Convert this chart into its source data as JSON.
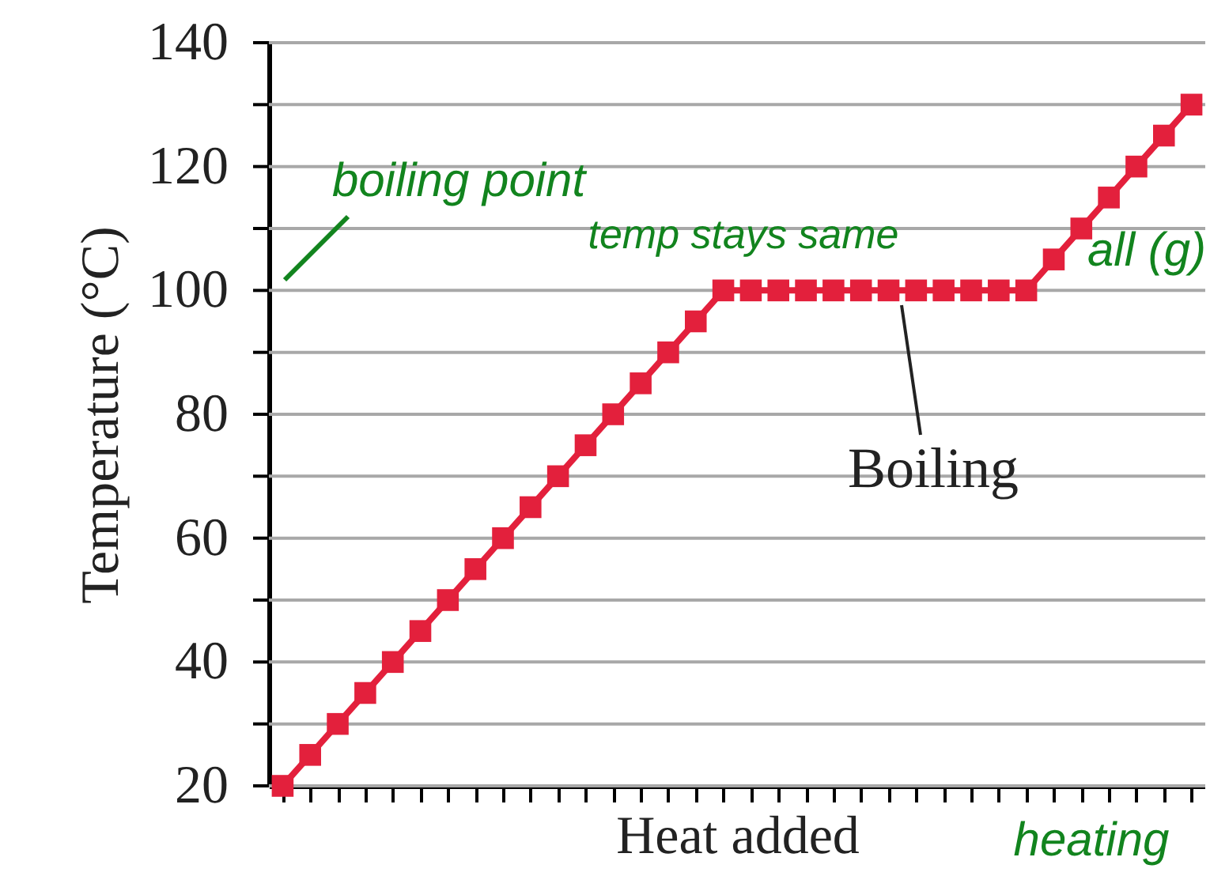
{
  "chart_data": {
    "type": "line",
    "xlabel": "Heat added",
    "ylabel": "Temperature (°C)",
    "categories": [
      null,
      null,
      null,
      null,
      null,
      null,
      null,
      null,
      null,
      null,
      null,
      null,
      null,
      null,
      null,
      null,
      null,
      null,
      null,
      null,
      null,
      null,
      null,
      null,
      null,
      null,
      null,
      null,
      null,
      null,
      null,
      null,
      null,
      null
    ],
    "series": [
      {
        "color": "#e3203c",
        "values": [
          20,
          25,
          30,
          35,
          40,
          45,
          50,
          55,
          60,
          65,
          70,
          75,
          80,
          85,
          90,
          95,
          100,
          100,
          100,
          100,
          100,
          100,
          100,
          100,
          100,
          100,
          100,
          100,
          105,
          110,
          115,
          120,
          125,
          130
        ]
      }
    ],
    "ylim": [
      20,
      140
    ],
    "yticks": [
      20,
      {
        "value": 30,
        "label": null
      },
      40,
      {
        "value": 50,
        "label": null
      },
      60,
      {
        "value": 70,
        "label": null
      },
      80,
      {
        "value": 90,
        "label": null
      },
      100,
      {
        "value": 110,
        "label": null
      },
      120,
      {
        "value": 130,
        "label": null
      },
      140
    ],
    "grid": "y",
    "marker": "square",
    "line_style": "solid",
    "tick_labels": "y",
    "annotations": [
      "boiling point",
      "temp stays same",
      "Boiling",
      "all (g)",
      "heating"
    ]
  }
}
